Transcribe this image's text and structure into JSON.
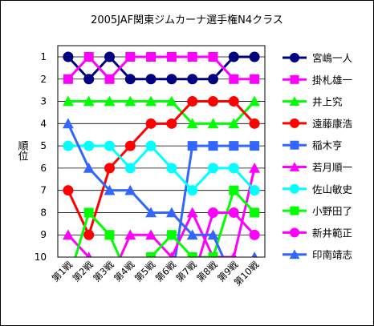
{
  "chart_data": {
    "type": "line",
    "title": "2005JAF関東ジムカーナ選手権N4クラス",
    "ylabel": "順位",
    "xlabel": "",
    "categories": [
      "第1戦",
      "第2戦",
      "第3戦",
      "第4戦",
      "第5戦",
      "第6戦",
      "第7戦",
      "第8戦",
      "第9戦",
      "第10戦"
    ],
    "y_ticks": [
      "1",
      "2",
      "3",
      "4",
      "5",
      "6",
      "7",
      "8",
      "9",
      "10"
    ],
    "ylim": [
      1,
      10
    ],
    "y_inverted": true,
    "grid": "horizontal",
    "legend_position": "right",
    "series": [
      {
        "name": "宮嶋一人",
        "color": "#000080",
        "marker": "circle",
        "values": [
          1,
          2,
          1,
          2,
          2,
          2,
          2,
          2,
          1,
          1
        ]
      },
      {
        "name": "掛札雄一",
        "color": "#FF00FF",
        "marker": "square",
        "values": [
          2,
          1,
          2,
          1,
          1,
          1,
          1,
          1,
          2,
          2
        ]
      },
      {
        "name": "井上究",
        "color": "#00FF00",
        "marker": "triangle",
        "values": [
          3,
          3,
          3,
          3,
          3,
          3,
          4,
          4,
          4,
          3
        ]
      },
      {
        "name": "遠藤康浩",
        "color": "#FF0000",
        "marker": "circle",
        "values": [
          7,
          9,
          6,
          5,
          4,
          4,
          3,
          3,
          3,
          4
        ]
      },
      {
        "name": "稲木亨",
        "color": "#3366FF",
        "marker": "square",
        "values": [
          null,
          null,
          null,
          null,
          null,
          null,
          5,
          5,
          5,
          5
        ]
      },
      {
        "name": "若月順一",
        "color": "#FF00FF",
        "marker": "triangle",
        "values": [
          9,
          10,
          null,
          9,
          9,
          10,
          8,
          10,
          10,
          6
        ]
      },
      {
        "name": "佐山敏史",
        "color": "#00FFFF",
        "marker": "circle",
        "values": [
          5,
          5,
          5,
          6,
          5,
          6,
          7,
          6,
          6,
          7
        ]
      },
      {
        "name": "小野田了",
        "color": "#00FF00",
        "marker": "square",
        "values": [
          null,
          8,
          9,
          null,
          10,
          9,
          10,
          10,
          7,
          8
        ]
      },
      {
        "name": "新井範正",
        "color": "#FF00FF",
        "marker": "circle",
        "values": [
          null,
          null,
          null,
          null,
          null,
          null,
          null,
          8,
          8,
          9
        ]
      },
      {
        "name": "印南靖志",
        "color": "#3366FF",
        "marker": "triangle",
        "values": [
          4,
          6,
          7,
          7,
          8,
          8,
          9,
          9,
          null,
          10
        ]
      }
    ]
  }
}
